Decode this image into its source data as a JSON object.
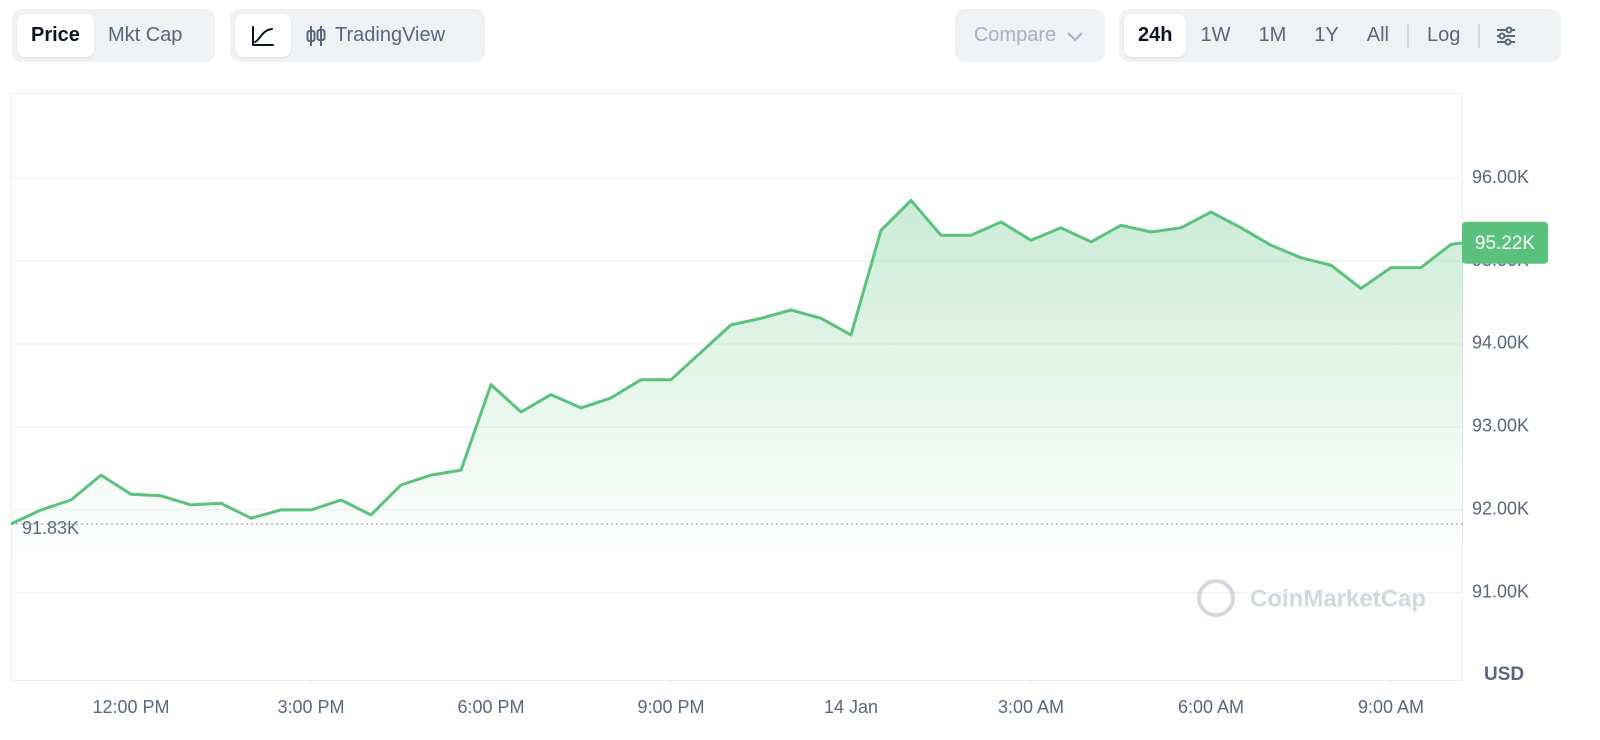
{
  "toolbar": {
    "view": [
      "Price",
      "Mkt Cap"
    ],
    "tools": [
      "TradingView"
    ],
    "compare": "Compare",
    "ranges": [
      "24h",
      "1W",
      "1M",
      "1Y",
      "All"
    ],
    "scale": "Log"
  },
  "chart_data": {
    "type": "area",
    "color": "#5ac27d",
    "x": [
      10,
      10.5,
      11,
      11.5,
      12,
      12.5,
      13,
      13.5,
      14,
      14.5,
      15,
      15.5,
      16,
      16.5,
      17,
      17.5,
      18,
      18.5,
      19,
      19.5,
      20,
      20.5,
      21,
      21.5,
      22,
      22.5,
      23,
      23.5,
      24,
      24.5,
      25,
      25.5,
      26,
      26.5,
      27,
      27.5,
      28,
      28.5,
      29,
      29.5,
      30,
      30.5,
      31,
      31.5,
      32,
      32.5,
      33,
      33.5,
      34,
      34.2
    ],
    "values": [
      91830,
      92000,
      92120,
      92420,
      92190,
      92170,
      92060,
      92080,
      91900,
      92000,
      92000,
      92120,
      91940,
      92300,
      92420,
      92480,
      93510,
      93180,
      93390,
      93230,
      93350,
      93570,
      93570,
      93900,
      94230,
      94310,
      94410,
      94310,
      94110,
      95370,
      95730,
      95310,
      95310,
      95470,
      95250,
      95400,
      95230,
      95430,
      95350,
      95400,
      95590,
      95400,
      95190,
      95040,
      94950,
      94670,
      94920,
      94920,
      95200,
      95220
    ],
    "xlim": [
      10,
      34.2
    ],
    "xticks": [
      {
        "value": 12,
        "label": "12:00 PM"
      },
      {
        "value": 15,
        "label": "3:00 PM"
      },
      {
        "value": 18,
        "label": "6:00 PM"
      },
      {
        "value": 21,
        "label": "9:00 PM"
      },
      {
        "value": 24,
        "label": "14 Jan"
      },
      {
        "value": 27,
        "label": "3:00 AM"
      },
      {
        "value": 30,
        "label": "6:00 AM"
      },
      {
        "value": 33,
        "label": "9:00 AM"
      }
    ],
    "ylim": [
      89950,
      97025
    ],
    "yticks": [
      {
        "value": 91000,
        "label": "91.00K"
      },
      {
        "value": 92000,
        "label": "92.00K"
      },
      {
        "value": 93000,
        "label": "93.00K"
      },
      {
        "value": 94000,
        "label": "94.00K"
      },
      {
        "value": 95000,
        "label": "95.00K"
      },
      {
        "value": 96000,
        "label": "96.00K"
      }
    ],
    "grid": true,
    "open": {
      "value": 91830,
      "label": "91.83K"
    },
    "last": {
      "value": 95220,
      "label": "95.22K"
    },
    "y_unit": "USD",
    "watermark": "CoinMarketCap"
  }
}
